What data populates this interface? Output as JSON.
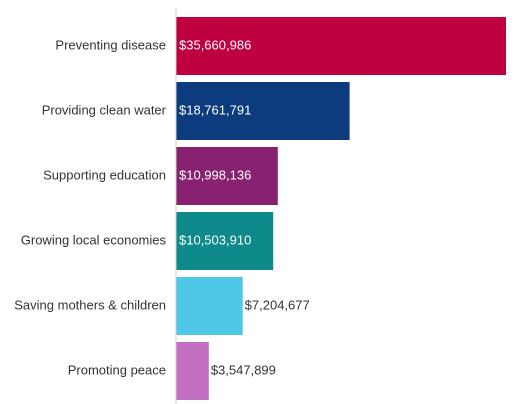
{
  "chart_data": {
    "type": "bar",
    "orientation": "horizontal",
    "categories": [
      "Preventing disease",
      "Providing clean water",
      "Supporting education",
      "Growing local economies",
      "Saving mothers & children",
      "Promoting peace"
    ],
    "values": [
      35660986,
      18761791,
      10998136,
      10503910,
      7204677,
      3547899
    ],
    "value_labels": [
      "$35,660,986",
      "$18,761,791",
      "$10,998,136",
      "$10,503,910",
      "$7,204,677",
      "$3,547,899"
    ],
    "colors": [
      "#BE0040",
      "#0C3B7E",
      "#882270",
      "#0F8A8A",
      "#4FC8E8",
      "#C36FC1"
    ],
    "axis_color": "#cccccc",
    "grid": false,
    "title": "",
    "xlabel": "",
    "ylabel": ""
  }
}
